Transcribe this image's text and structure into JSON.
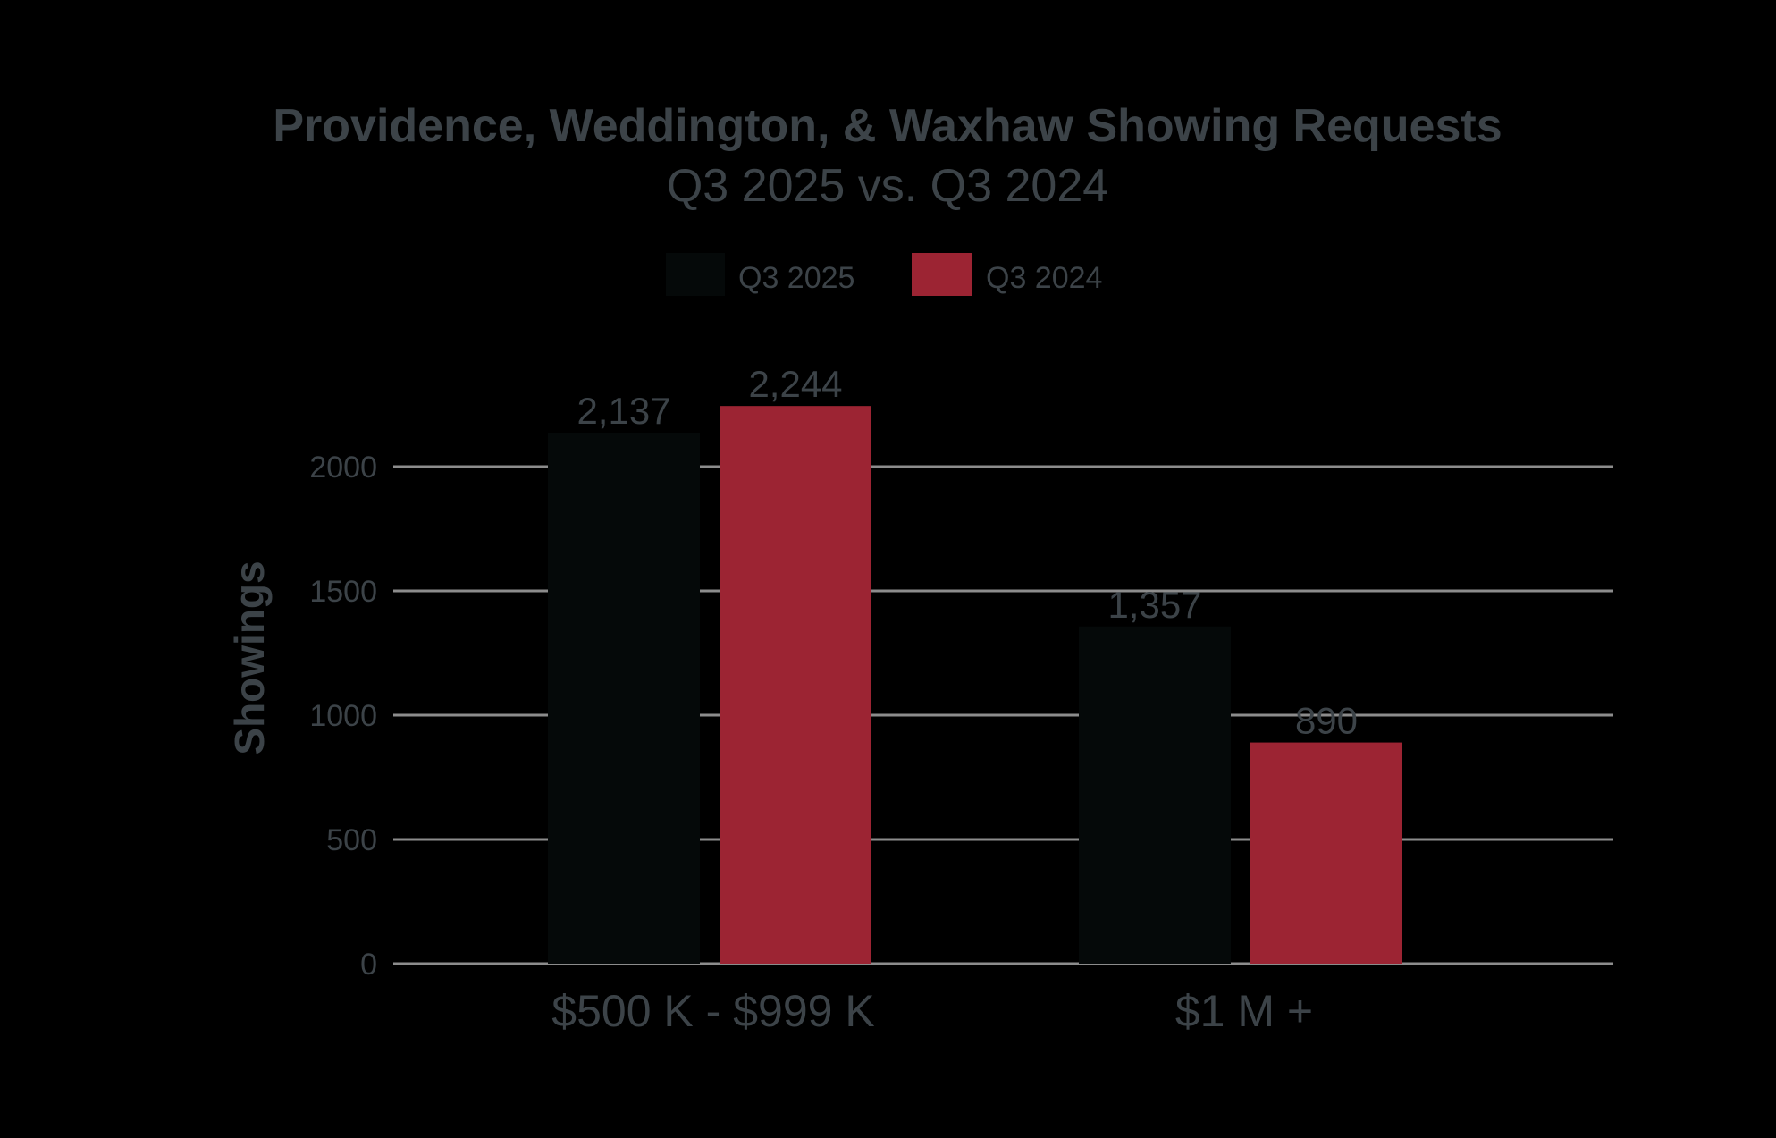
{
  "chart_data": {
    "type": "bar",
    "title": "Providence, Weddington, & Waxhaw Showing Requests",
    "subtitle": "Q3 2025 vs. Q3 2024",
    "xlabel": "",
    "ylabel": "Showings",
    "categories": [
      "$500 K - $999 K",
      "$1 M +"
    ],
    "series": [
      {
        "name": "Q3 2025",
        "color": "#050909",
        "values": [
          2137,
          1357
        ],
        "labels": [
          "2,137",
          "1,357"
        ]
      },
      {
        "name": "Q3 2024",
        "color": "#9c2433",
        "values": [
          2244,
          890
        ],
        "labels": [
          "2,244",
          "890"
        ]
      }
    ],
    "ylim": [
      0,
      2500
    ],
    "yticks": [
      0,
      500,
      1000,
      1500,
      2000
    ],
    "ytick_labels": [
      "0",
      "500",
      "1000",
      "1500",
      "2000"
    ],
    "grid": true,
    "legend_position": "top-center"
  },
  "colors": {
    "background": "#000000",
    "text": "#3c4348",
    "grid": "#8c8c8c"
  }
}
